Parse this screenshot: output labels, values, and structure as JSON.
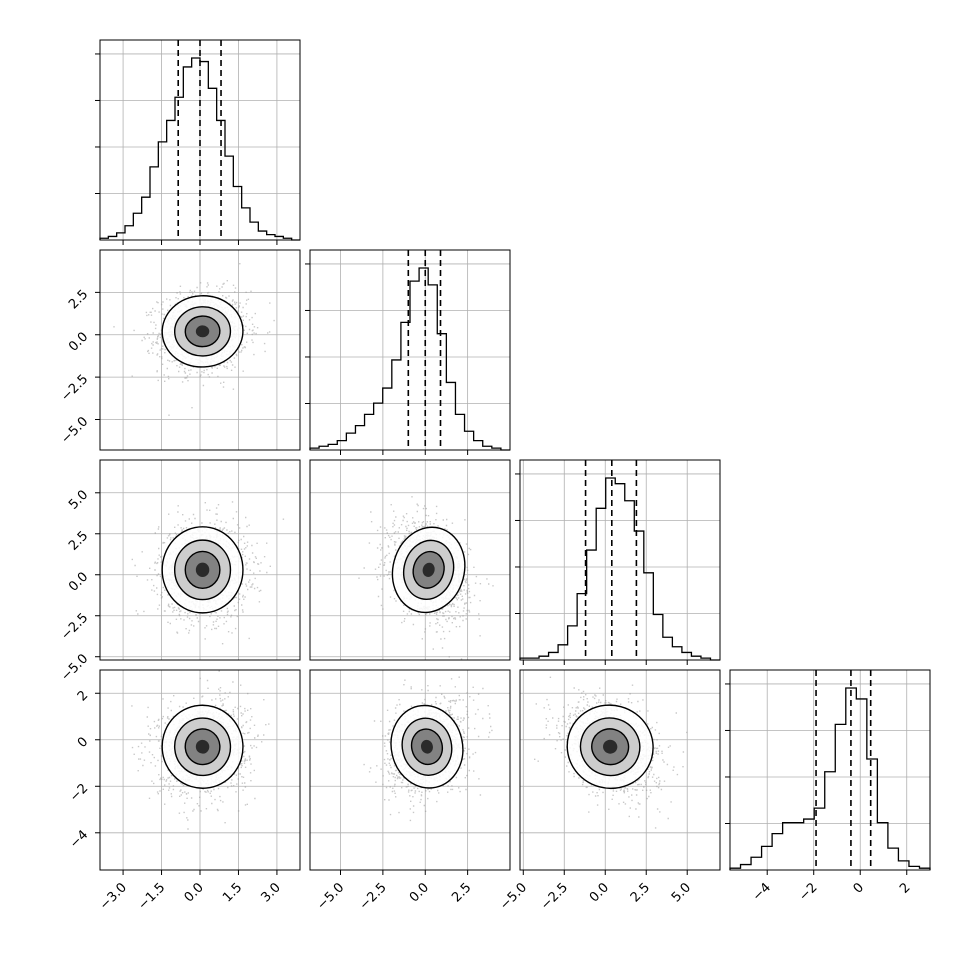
{
  "chart_data": {
    "type": "corner",
    "n_params": 4,
    "grid": true,
    "colors": {
      "line": "#000000",
      "grid": "#b0b0b0",
      "scatter": "#9a9a9a",
      "density_dark": "#000000",
      "density_light": "#ffffff"
    },
    "params": [
      {
        "range": [
          -3.9,
          3.9
        ],
        "ticks": [
          -3.0,
          -1.5,
          0.0,
          1.5,
          3.0
        ],
        "tick_labels": [
          "−3.0",
          "−1.5",
          "0.0",
          "1.5",
          "3.0"
        ],
        "quantiles": [
          -0.85,
          0.0,
          0.82
        ],
        "hist": [
          1,
          2,
          4,
          8,
          15,
          24,
          41,
          55,
          67,
          80,
          97,
          102,
          100,
          85,
          67,
          47,
          30,
          18,
          10,
          5,
          3,
          2,
          1,
          0
        ]
      },
      {
        "range": [
          -6.8,
          5.0
        ],
        "ticks": [
          -5.0,
          -2.5,
          0.0,
          2.5
        ],
        "tick_labels": [
          "−5.0",
          "−2.5",
          "0.0",
          "2.5"
        ],
        "quantiles": [
          -1.0,
          0.0,
          0.9
        ],
        "hist": [
          1,
          2,
          3,
          5,
          9,
          13,
          19,
          25,
          33,
          48,
          68,
          90,
          97,
          88,
          62,
          36,
          19,
          10,
          5,
          2,
          1,
          0
        ]
      },
      {
        "range": [
          -5.2,
          7.0
        ],
        "ticks": [
          -5.0,
          -2.5,
          0.0,
          2.5,
          5.0
        ],
        "tick_labels": [
          "−5.0",
          "−2.5",
          "0.0",
          "2.5",
          "5.0"
        ],
        "quantiles": [
          -1.2,
          0.4,
          1.9
        ],
        "hist": [
          1,
          1,
          2,
          4,
          8,
          18,
          35,
          58,
          80,
          96,
          93,
          84,
          68,
          46,
          24,
          12,
          7,
          4,
          2,
          1,
          0
        ]
      },
      {
        "range": [
          -5.6,
          3.0
        ],
        "ticks": [
          -4,
          -2,
          0,
          2
        ],
        "tick_labels": [
          "−4",
          "−2",
          "0",
          "2"
        ],
        "quantiles": [
          -1.9,
          -0.4,
          0.45
        ],
        "hist": [
          1,
          3,
          7,
          13,
          20,
          26,
          26,
          28,
          34,
          54,
          80,
          100,
          94,
          61,
          26,
          12,
          5,
          2,
          1
        ]
      }
    ],
    "pairs": [
      {
        "row": 1,
        "col": 0,
        "cx": 0.1,
        "cy": 0.2,
        "sx": 0.75,
        "sy": 1.0,
        "rho": 0.05
      },
      {
        "row": 2,
        "col": 0,
        "cx": 0.1,
        "cy": 0.3,
        "sx": 0.75,
        "sy": 1.25,
        "rho": 0.0
      },
      {
        "row": 2,
        "col": 1,
        "cx": 0.2,
        "cy": 0.3,
        "sx": 1.0,
        "sy": 1.25,
        "rho": -0.3
      },
      {
        "row": 3,
        "col": 0,
        "cx": 0.1,
        "cy": -0.3,
        "sx": 0.75,
        "sy": 0.85,
        "rho": 0.1
      },
      {
        "row": 3,
        "col": 1,
        "cx": 0.1,
        "cy": -0.3,
        "sx": 1.0,
        "sy": 0.85,
        "rho": 0.25
      },
      {
        "row": 3,
        "col": 2,
        "cx": 0.3,
        "cy": -0.3,
        "sx": 1.25,
        "sy": 0.85,
        "rho": -0.3
      }
    ]
  }
}
